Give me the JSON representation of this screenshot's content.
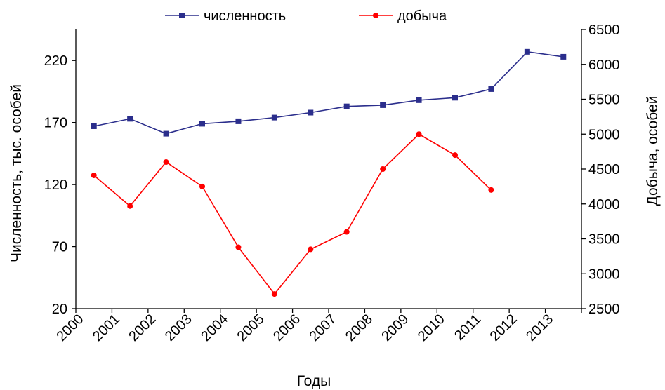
{
  "chart_data": {
    "type": "line",
    "categories": [
      "2000",
      "2001",
      "2002",
      "2003",
      "2004",
      "2005",
      "2006",
      "2007",
      "2008",
      "2009",
      "2010",
      "2011",
      "2012",
      "2013"
    ],
    "xlabel": "Годы",
    "ylabel_left": "Численность, тыс. особей",
    "ylabel_right": "Добыча, особей",
    "yleft": {
      "range": [
        20,
        245
      ],
      "ticks": [
        20,
        70,
        120,
        170,
        220
      ]
    },
    "yright": {
      "range": [
        2500,
        6500
      ],
      "ticks": [
        2500,
        3000,
        3500,
        4000,
        4500,
        5000,
        5500,
        6000,
        6500
      ]
    },
    "legend_position": "top",
    "series": [
      {
        "name": "численность",
        "axis": "left",
        "color": "#2B2E8C",
        "marker": "square",
        "values": [
          167,
          173,
          161,
          169,
          171,
          174,
          178,
          183,
          184,
          188,
          190,
          197,
          227,
          223
        ]
      },
      {
        "name": "добыча",
        "axis": "right",
        "color": "#FF0000",
        "marker": "circle",
        "values": [
          4410,
          3970,
          4600,
          4250,
          3380,
          2710,
          3350,
          3600,
          4500,
          5000,
          4700,
          4200,
          null,
          null
        ]
      }
    ]
  }
}
